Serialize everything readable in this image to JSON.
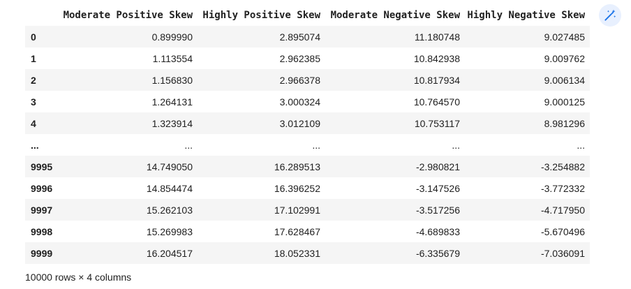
{
  "dataframe": {
    "columns": [
      "Moderate Positive Skew",
      "Highly Positive Skew",
      "Moderate Negative Skew",
      "Highly Negative Skew"
    ],
    "rows": [
      {
        "index": "0",
        "values": [
          "0.899990",
          "2.895074",
          "11.180748",
          "9.027485"
        ]
      },
      {
        "index": "1",
        "values": [
          "1.113554",
          "2.962385",
          "10.842938",
          "9.009762"
        ]
      },
      {
        "index": "2",
        "values": [
          "1.156830",
          "2.966378",
          "10.817934",
          "9.006134"
        ]
      },
      {
        "index": "3",
        "values": [
          "1.264131",
          "3.000324",
          "10.764570",
          "9.000125"
        ]
      },
      {
        "index": "4",
        "values": [
          "1.323914",
          "3.012109",
          "10.753117",
          "8.981296"
        ]
      },
      {
        "index": "...",
        "values": [
          "...",
          "...",
          "...",
          "..."
        ]
      },
      {
        "index": "9995",
        "values": [
          "14.749050",
          "16.289513",
          "-2.980821",
          "-3.254882"
        ]
      },
      {
        "index": "9996",
        "values": [
          "14.854474",
          "16.396252",
          "-3.147526",
          "-3.772332"
        ]
      },
      {
        "index": "9997",
        "values": [
          "15.262103",
          "17.102991",
          "-3.517256",
          "-4.717950"
        ]
      },
      {
        "index": "9998",
        "values": [
          "15.269983",
          "17.628467",
          "-4.689833",
          "-5.670496"
        ]
      },
      {
        "index": "9999",
        "values": [
          "16.204517",
          "18.052331",
          "-6.335679",
          "-7.036091"
        ]
      }
    ],
    "shape_text": "10000 rows × 4 columns"
  },
  "toolbar": {
    "magic_icon": "magic-wand-icon",
    "accent_color": "#1a73e8",
    "button_bg": "#e8f0fe"
  }
}
